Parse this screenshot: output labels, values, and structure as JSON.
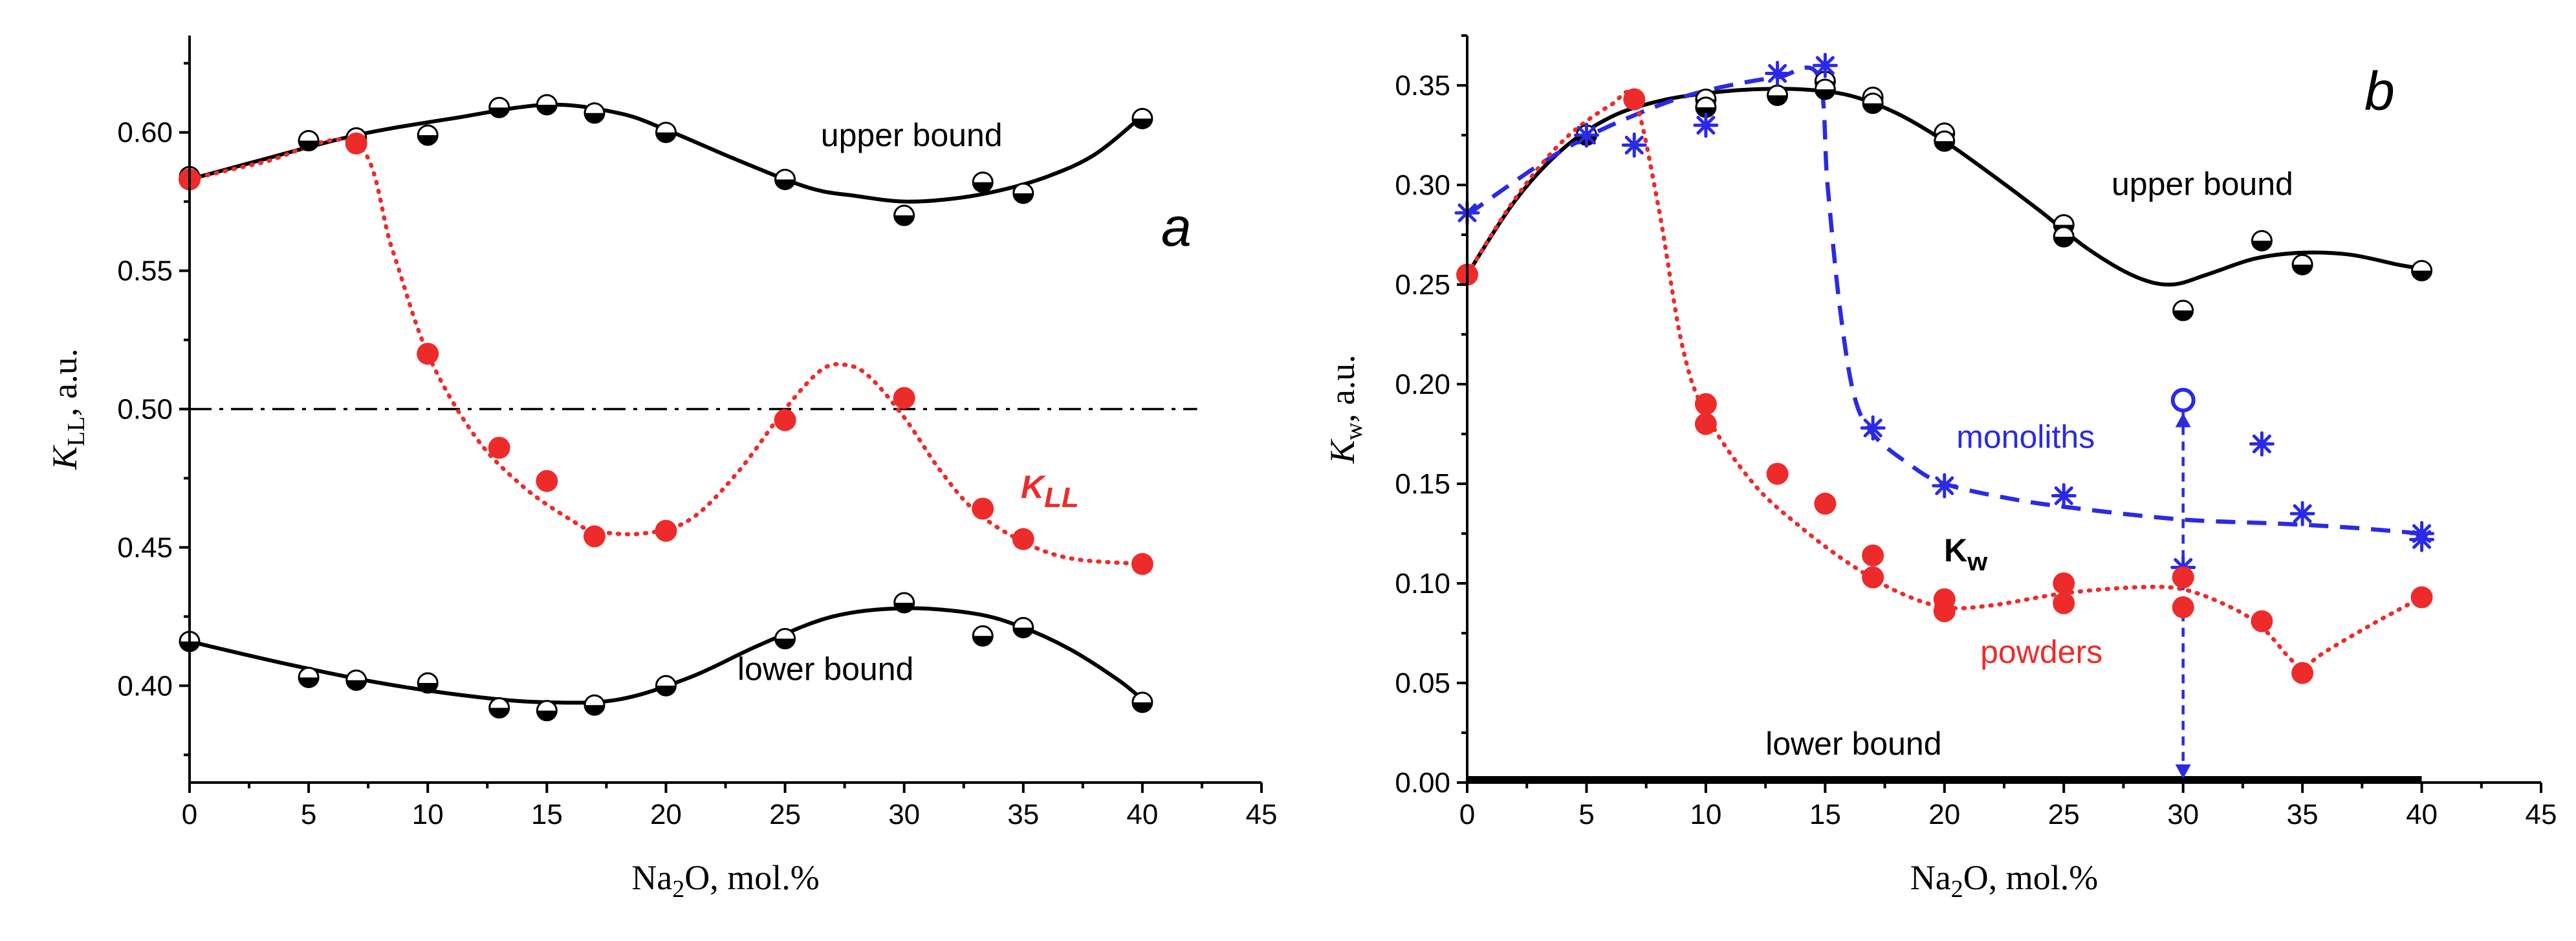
{
  "chart_data": [
    {
      "type": "scatter",
      "panel_label": "a",
      "ylabel_main": "K",
      "ylabel_sub": "LL",
      "ylabel_suffix": ", a.u.",
      "xlabel_pre": "Na",
      "xlabel_sub": "2",
      "xlabel_post": "O, mol.%",
      "xlim": [
        0,
        45
      ],
      "ylim": [
        0.365,
        0.635
      ],
      "xticks": [
        0,
        5,
        10,
        15,
        20,
        25,
        30,
        35,
        40,
        45
      ],
      "yticks": [
        0.4,
        0.45,
        0.5,
        0.55,
        0.6
      ],
      "ytick_labels": [
        "0.40",
        "0.45",
        "0.50",
        "0.55",
        "0.60"
      ],
      "reference_line": {
        "y": 0.5,
        "x_range": [
          0,
          42.3
        ],
        "style": "dash-dot"
      },
      "series": [
        {
          "name": "upper bound",
          "marker": "half-circle",
          "color": "#000000",
          "x": [
            0,
            5,
            7,
            10,
            13,
            15,
            17,
            20,
            25,
            30,
            33.3,
            35,
            40
          ],
          "y": [
            0.584,
            0.597,
            0.598,
            0.599,
            0.609,
            0.61,
            0.607,
            0.6,
            0.583,
            0.57,
            0.582,
            0.578,
            0.605
          ]
        },
        {
          "name": "upper bound fit",
          "style": "solid",
          "color": "#000000",
          "x": [
            0,
            3,
            7,
            11,
            15,
            18,
            20,
            23,
            26,
            28,
            30,
            32,
            34,
            36,
            38,
            40
          ],
          "y": [
            0.583,
            0.59,
            0.599,
            0.605,
            0.61,
            0.607,
            0.601,
            0.59,
            0.58,
            0.577,
            0.575,
            0.576,
            0.579,
            0.584,
            0.592,
            0.606
          ]
        },
        {
          "name": "K_LL",
          "marker": "filled-circle",
          "color": "#ee2b2b",
          "x": [
            0,
            7,
            10,
            13,
            15,
            17,
            20,
            25,
            30,
            33.3,
            35,
            40
          ],
          "y": [
            0.583,
            0.596,
            0.52,
            0.486,
            0.474,
            0.454,
            0.456,
            0.496,
            0.504,
            0.464,
            0.453,
            0.444
          ]
        },
        {
          "name": "K_LL fit",
          "style": "dotted",
          "color": "#ee2b2b",
          "x": [
            0,
            3,
            7,
            8.5,
            10,
            12,
            14,
            16,
            17,
            19,
            21,
            23,
            25,
            26.5,
            27.5,
            28.5,
            30,
            31.5,
            33,
            35,
            37,
            40
          ],
          "y": [
            0.583,
            0.589,
            0.596,
            0.558,
            0.52,
            0.49,
            0.472,
            0.46,
            0.456,
            0.455,
            0.46,
            0.477,
            0.5,
            0.514,
            0.516,
            0.512,
            0.497,
            0.478,
            0.463,
            0.452,
            0.446,
            0.444
          ]
        },
        {
          "name": "lower bound",
          "marker": "half-circle",
          "color": "#000000",
          "x": [
            0,
            5,
            7,
            10,
            13,
            15,
            17,
            20,
            25,
            30,
            33.3,
            35,
            40
          ],
          "y": [
            0.416,
            0.403,
            0.402,
            0.401,
            0.392,
            0.391,
            0.393,
            0.4,
            0.417,
            0.43,
            0.418,
            0.421,
            0.394
          ]
        },
        {
          "name": "lower bound fit",
          "style": "solid",
          "color": "#000000",
          "x": [
            0,
            4,
            8,
            12,
            15,
            18,
            21,
            24,
            27,
            30,
            33,
            35,
            37,
            39,
            40
          ],
          "y": [
            0.416,
            0.408,
            0.401,
            0.396,
            0.394,
            0.395,
            0.403,
            0.415,
            0.425,
            0.428,
            0.426,
            0.421,
            0.413,
            0.402,
            0.395
          ]
        }
      ],
      "annotations": [
        {
          "text": "upper bound",
          "x": 26.5,
          "y": 0.595,
          "color": "#000000"
        },
        {
          "text": "lower bound",
          "x": 23,
          "y": 0.402,
          "color": "#000000"
        }
      ],
      "kll_label_main": "K",
      "kll_label_sub": "LL"
    },
    {
      "type": "scatter",
      "panel_label": "b",
      "ylabel_main": "K",
      "ylabel_sub": "w",
      "ylabel_suffix": ", a.u.",
      "xlabel_pre": "Na",
      "xlabel_sub": "2",
      "xlabel_post": "O, mol.%",
      "xlim": [
        0,
        45
      ],
      "ylim": [
        0,
        0.375
      ],
      "xticks": [
        0,
        5,
        10,
        15,
        20,
        25,
        30,
        35,
        40,
        45
      ],
      "yticks": [
        0.0,
        0.05,
        0.1,
        0.15,
        0.2,
        0.25,
        0.3,
        0.35
      ],
      "ytick_labels": [
        "0.00",
        "0.05",
        "0.10",
        "0.15",
        "0.20",
        "0.25",
        "0.30",
        "0.35"
      ],
      "series": [
        {
          "name": "upper bound",
          "marker": "half-circle",
          "color": "#000000",
          "x": [
            0,
            5,
            7,
            10,
            10,
            13,
            15,
            15,
            17,
            17,
            20,
            20,
            25,
            25,
            30,
            33.3,
            35,
            40
          ],
          "y": [
            0.255,
            0.325,
            0.343,
            0.343,
            0.339,
            0.345,
            0.352,
            0.348,
            0.344,
            0.341,
            0.326,
            0.322,
            0.28,
            0.274,
            0.237,
            0.272,
            0.26,
            0.257
          ]
        },
        {
          "name": "upper bound fit",
          "style": "solid",
          "color": "#000000",
          "x": [
            0,
            2,
            4,
            6,
            8,
            10,
            12,
            14,
            16,
            18,
            20,
            22,
            24,
            26,
            28,
            29.5,
            31,
            33,
            35,
            37,
            39,
            40
          ],
          "y": [
            0.255,
            0.292,
            0.318,
            0.334,
            0.342,
            0.346,
            0.348,
            0.348,
            0.345,
            0.336,
            0.322,
            0.305,
            0.287,
            0.268,
            0.254,
            0.25,
            0.255,
            0.263,
            0.266,
            0.265,
            0.26,
            0.258
          ]
        },
        {
          "name": "monoliths",
          "marker": "asterisk",
          "color": "#2a2ae6",
          "x": [
            0,
            5,
            7,
            10,
            13,
            15,
            17,
            20,
            25,
            30,
            33.3,
            35,
            40,
            40
          ],
          "y": [
            0.286,
            0.325,
            0.32,
            0.33,
            0.356,
            0.36,
            0.178,
            0.149,
            0.144,
            0.108,
            0.17,
            0.135,
            0.125,
            0.122
          ]
        },
        {
          "name": "monoliths fit",
          "style": "dashed",
          "color": "#2a2ae6",
          "x": [
            0,
            3,
            5,
            7,
            9,
            11,
            13,
            14.7,
            15.1,
            15.6,
            16.2,
            17,
            18.5,
            20,
            23,
            26,
            30,
            34,
            37,
            40
          ],
          "y": [
            0.285,
            0.31,
            0.324,
            0.335,
            0.344,
            0.35,
            0.354,
            0.355,
            0.3,
            0.24,
            0.195,
            0.175,
            0.16,
            0.15,
            0.142,
            0.137,
            0.132,
            0.13,
            0.128,
            0.125
          ]
        },
        {
          "name": "powders",
          "marker": "filled-circle",
          "color": "#ee2b2b",
          "x": [
            0,
            7,
            10,
            10,
            13,
            15,
            17,
            17,
            20,
            20,
            25,
            25,
            30,
            30,
            33.3,
            35,
            40
          ],
          "y": [
            0.255,
            0.343,
            0.19,
            0.18,
            0.155,
            0.14,
            0.114,
            0.103,
            0.092,
            0.086,
            0.1,
            0.09,
            0.103,
            0.088,
            0.081,
            0.055,
            0.093
          ]
        },
        {
          "name": "powders fit",
          "style": "dotted",
          "color": "#ee2b2b",
          "x": [
            0,
            2,
            4,
            6,
            7,
            8,
            9,
            10,
            12,
            14,
            16,
            18,
            20,
            22,
            25,
            28,
            30,
            32,
            33.3,
            34.5,
            35,
            36,
            38,
            40
          ],
          "y": [
            0.255,
            0.293,
            0.322,
            0.34,
            0.343,
            0.29,
            0.22,
            0.185,
            0.15,
            0.128,
            0.11,
            0.096,
            0.088,
            0.089,
            0.095,
            0.098,
            0.097,
            0.088,
            0.078,
            0.062,
            0.058,
            0.066,
            0.08,
            0.093
          ]
        },
        {
          "name": "lower bound",
          "style": "thick-solid",
          "color": "#000000",
          "x": [
            0,
            40
          ],
          "y": [
            0.0,
            0.0
          ]
        }
      ],
      "vertical_marker": {
        "x": 30,
        "y_top": 0.192,
        "y_bottom": 0.0,
        "color": "#2a2ae6"
      },
      "annotations": [
        {
          "text": "upper bound",
          "x": 27,
          "y": 0.295,
          "color": "#000000"
        },
        {
          "text": "monoliths",
          "x": 20.5,
          "y": 0.168,
          "color": "#2a2ae6"
        },
        {
          "text": "powders",
          "x": 21.5,
          "y": 0.06,
          "color": "#ee2b2b"
        },
        {
          "text": "lower bound",
          "x": 12.5,
          "y": 0.014,
          "color": "#000000"
        }
      ],
      "kw_label_main": "K",
      "kw_label_sub": "w"
    }
  ]
}
